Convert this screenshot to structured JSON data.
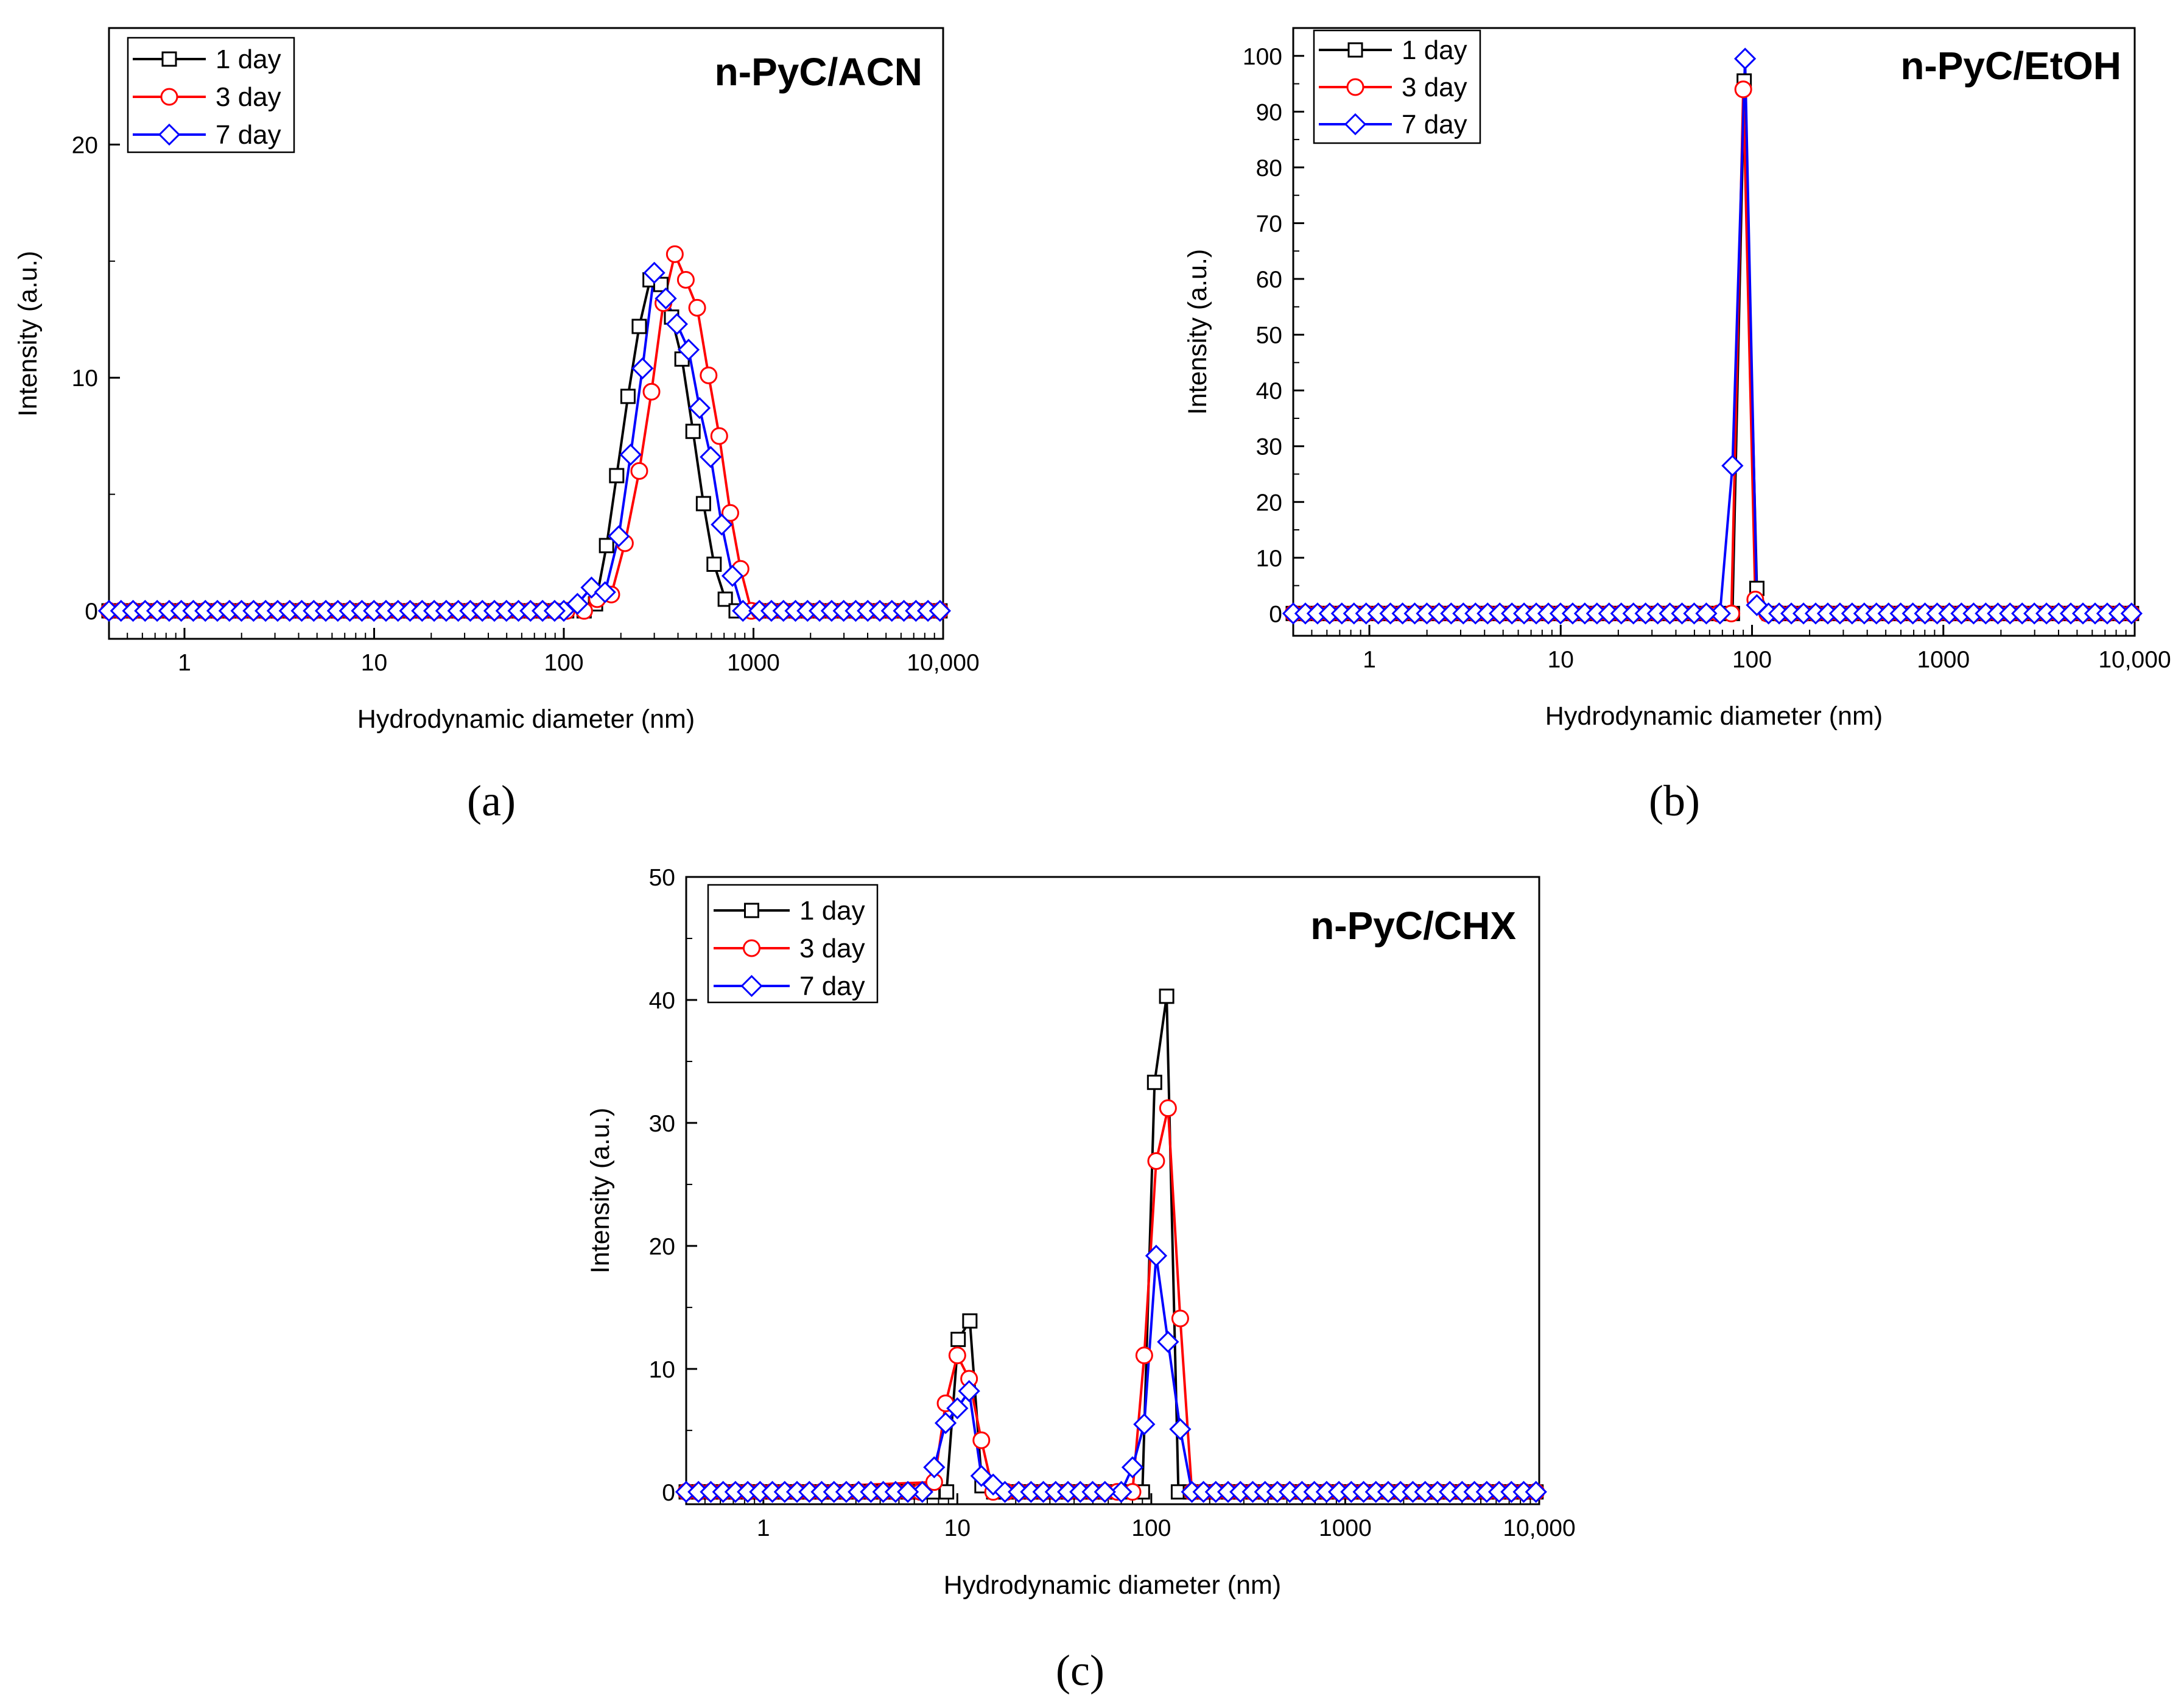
{
  "colors": {
    "black": "#000000",
    "red": "#ff0000",
    "blue": "#0000ff"
  },
  "panel_labels": {
    "a": "(a)",
    "b": "(b)",
    "c": "(c)"
  },
  "chart_data": [
    {
      "type": "line",
      "id": "a",
      "title": "n-PyC/ACN",
      "xlabel": "Hydrodynamic diameter (nm)",
      "ylabel": "Intensity (a.u.)",
      "xscale": "log",
      "xlim": [
        0.4,
        10000
      ],
      "ylim": [
        -1.2,
        25
      ],
      "xticks": [
        1,
        10,
        100,
        1000,
        10000
      ],
      "xtick_labels": [
        "1",
        "10",
        "100",
        "1000",
        "10,000"
      ],
      "yticks": [
        0,
        10,
        20
      ],
      "ytick_labels": [
        "0",
        "10",
        "20"
      ],
      "legend": "top-left",
      "series": [
        {
          "name": "1 day",
          "color": "black",
          "marker": "square",
          "x": [
            0.4,
            128,
            147,
            168,
            190,
            218,
            250,
            285,
            325,
            370,
            420,
            480,
            545,
            620,
            710,
            810,
            925,
            10000
          ],
          "y": [
            0,
            0,
            0.3,
            2.8,
            5.8,
            9.2,
            12.2,
            14.2,
            14.0,
            12.6,
            10.8,
            7.7,
            4.6,
            2.0,
            0.5,
            0,
            0,
            0
          ]
        },
        {
          "name": "3 day",
          "color": "red",
          "marker": "circle",
          "x": [
            0.4,
            128,
            150,
            178,
            210,
            250,
            290,
            335,
            385,
            440,
            505,
            580,
            660,
            755,
            855,
            975,
            10000
          ],
          "y": [
            0,
            0,
            0.5,
            0.7,
            2.9,
            6.0,
            9.4,
            13.2,
            15.3,
            14.2,
            13.0,
            10.1,
            7.5,
            4.2,
            1.8,
            0,
            0
          ]
        },
        {
          "name": "7 day",
          "color": "blue",
          "marker": "diamond",
          "x": [
            0.4,
            100,
            118,
            140,
            165,
            195,
            225,
            260,
            300,
            345,
            395,
            455,
            520,
            595,
            680,
            775,
            880,
            10000
          ],
          "y": [
            0,
            0,
            0.3,
            1.0,
            0.8,
            3.2,
            6.7,
            10.4,
            14.5,
            13.4,
            12.3,
            11.2,
            8.7,
            6.6,
            3.7,
            1.5,
            0,
            0
          ]
        }
      ]
    },
    {
      "type": "line",
      "id": "b",
      "title": "n-PyC/EtOH",
      "xlabel": "Hydrodynamic diameter (nm)",
      "ylabel": "Intensity (a.u.)",
      "xscale": "log",
      "xlim": [
        0.4,
        10000
      ],
      "ylim": [
        -4,
        105
      ],
      "xticks": [
        1,
        10,
        100,
        1000,
        10000
      ],
      "xtick_labels": [
        "1",
        "10",
        "100",
        "1000",
        "10,000"
      ],
      "yticks": [
        0,
        10,
        20,
        30,
        40,
        50,
        60,
        70,
        80,
        90,
        100
      ],
      "ytick_labels": [
        "0",
        "10",
        "20",
        "30",
        "40",
        "50",
        "60",
        "70",
        "80",
        "90",
        "100"
      ],
      "legend": "top-left",
      "series": [
        {
          "name": "1 day",
          "color": "black",
          "marker": "square",
          "x": [
            0.4,
            79,
            91,
            106,
            123,
            10000
          ],
          "y": [
            0,
            0,
            95.5,
            4.5,
            0,
            0
          ]
        },
        {
          "name": "3 day",
          "color": "red",
          "marker": "circle",
          "x": [
            0.4,
            78,
            90,
            104,
            120,
            10000
          ],
          "y": [
            0,
            0,
            94.0,
            2.5,
            0,
            0
          ]
        },
        {
          "name": "7 day",
          "color": "blue",
          "marker": "diamond",
          "x": [
            0.4,
            68,
            79,
            92,
            106,
            122,
            10000
          ],
          "y": [
            0,
            0,
            26.5,
            99.5,
            1.5,
            0,
            0
          ]
        }
      ]
    },
    {
      "type": "line",
      "id": "c",
      "title": "n-PyC/CHX",
      "xlabel": "Hydrodynamic diameter (nm)",
      "ylabel": "Intensity (a.u.)",
      "xscale": "log",
      "xlim": [
        0.4,
        10000
      ],
      "ylim": [
        -1,
        50
      ],
      "xticks": [
        1,
        10,
        100,
        1000,
        10000
      ],
      "xtick_labels": [
        "1",
        "10",
        "100",
        "1000",
        "10,000"
      ],
      "yticks": [
        0,
        10,
        20,
        30,
        40,
        50
      ],
      "ytick_labels": [
        "0",
        "10",
        "20",
        "30",
        "40",
        "50"
      ],
      "legend": "top-left",
      "series": [
        {
          "name": "1 day",
          "color": "black",
          "marker": "square",
          "x": [
            0.4,
            8.8,
            10.1,
            11.6,
            13.4,
            15.4,
            90,
            104,
            120,
            138,
            159,
            10000
          ],
          "y": [
            0,
            0,
            12.4,
            13.9,
            0.5,
            0,
            0,
            33.3,
            40.3,
            0,
            0,
            0
          ]
        },
        {
          "name": "3 day",
          "color": "red",
          "marker": "circle",
          "x": [
            0.4,
            7.6,
            8.7,
            10.0,
            11.5,
            13.3,
            15.3,
            80,
            92,
            106,
            122,
            141,
            162,
            10000
          ],
          "y": [
            0,
            0.8,
            7.2,
            11.1,
            9.2,
            4.2,
            0,
            0,
            11.1,
            26.9,
            31.2,
            14.1,
            0,
            0
          ]
        },
        {
          "name": "7 day",
          "color": "blue",
          "marker": "diamond",
          "x": [
            0.4,
            6.6,
            7.6,
            8.7,
            10.0,
            11.5,
            13.3,
            15.3,
            17.6,
            70,
            80,
            92,
            106,
            122,
            141,
            162,
            10000
          ],
          "y": [
            0,
            0,
            2.0,
            5.6,
            6.8,
            8.2,
            1.3,
            0.6,
            0,
            0,
            2.0,
            5.5,
            19.2,
            12.2,
            5.1,
            0,
            0
          ]
        }
      ]
    }
  ]
}
